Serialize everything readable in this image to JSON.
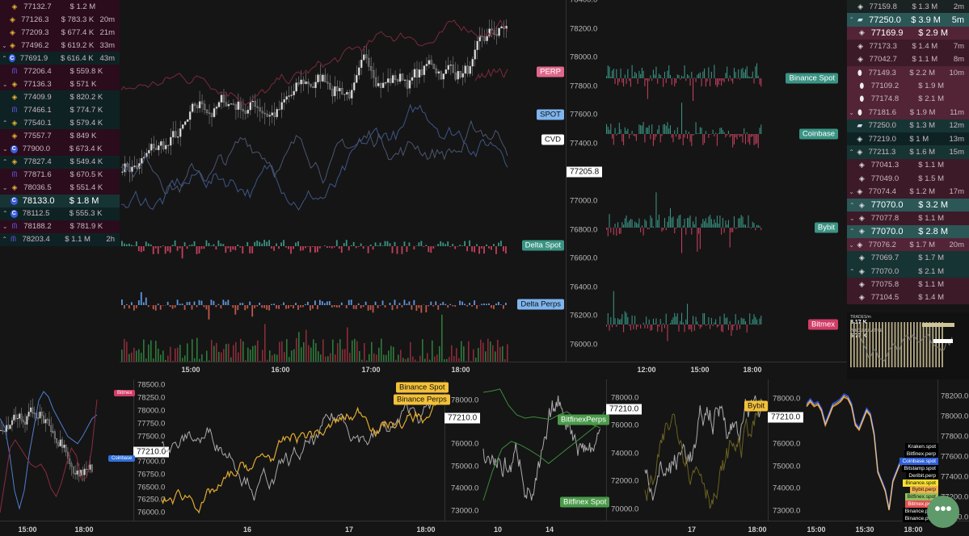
{
  "left_trades": [
    {
      "dir": "",
      "icon": "binance",
      "price": "77132.7",
      "amount": "$ 1.2 M",
      "time": "",
      "bg": "m1"
    },
    {
      "dir": "",
      "icon": "binance",
      "price": "77126.3",
      "amount": "$ 783.3 K",
      "time": "20m",
      "bg": "m1"
    },
    {
      "dir": "",
      "icon": "binance",
      "price": "77209.3",
      "amount": "$ 677.4 K",
      "time": "21m",
      "bg": "m1"
    },
    {
      "dir": "down",
      "icon": "binance",
      "price": "77496.2",
      "amount": "$ 619.2 K",
      "time": "33m",
      "bg": "m1"
    },
    {
      "dir": "up",
      "icon": "coinbase",
      "price": "77691.9",
      "amount": "$ 616.4 K",
      "time": "43m",
      "bg": "t1"
    },
    {
      "dir": "",
      "icon": "kraken",
      "price": "77206.4",
      "amount": "$ 559.8 K",
      "time": "",
      "bg": "m1"
    },
    {
      "dir": "down",
      "icon": "binance",
      "price": "77136.3",
      "amount": "$ 571 K",
      "time": "",
      "bg": "m1"
    },
    {
      "dir": "",
      "icon": "binance",
      "price": "77409.9",
      "amount": "$ 820.2 K",
      "time": "",
      "bg": "t1"
    },
    {
      "dir": "",
      "icon": "kraken",
      "price": "77466.1",
      "amount": "$ 774.7 K",
      "time": "",
      "bg": "t1"
    },
    {
      "dir": "up",
      "icon": "binance",
      "price": "77540.1",
      "amount": "$ 579.4 K",
      "time": "",
      "bg": "t1"
    },
    {
      "dir": "",
      "icon": "binance",
      "price": "77557.7",
      "amount": "$ 849 K",
      "time": "",
      "bg": "m1"
    },
    {
      "dir": "down",
      "icon": "coinbase",
      "price": "77900.0",
      "amount": "$ 673.4 K",
      "time": "",
      "bg": "m1"
    },
    {
      "dir": "up",
      "icon": "binance",
      "price": "77827.4",
      "amount": "$ 549.4 K",
      "time": "",
      "bg": "t1"
    },
    {
      "dir": "",
      "icon": "kraken",
      "price": "77871.6",
      "amount": "$ 670.5 K",
      "time": "",
      "bg": "m1"
    },
    {
      "dir": "down",
      "icon": "binance",
      "price": "78036.5",
      "amount": "$ 551.4 K",
      "time": "",
      "bg": "m1"
    },
    {
      "dir": "",
      "icon": "coinbase",
      "price": "78133.0",
      "amount": "$ 1.8 M",
      "time": "",
      "bg": "t2",
      "big": true
    },
    {
      "dir": "up",
      "icon": "coinbase",
      "price": "78112.5",
      "amount": "$ 555.3 K",
      "time": "",
      "bg": "t1"
    },
    {
      "dir": "down",
      "icon": "kraken",
      "price": "78188.2",
      "amount": "$ 781.9 K",
      "time": "",
      "bg": "m1"
    },
    {
      "dir": "up",
      "icon": "kraken",
      "price": "78203.4",
      "amount": "$ 1.1 M",
      "time": "2h",
      "bg": "t1"
    }
  ],
  "right_trades": [
    {
      "dir": "",
      "icon": "binance-white",
      "price": "77159.8",
      "amount": "$ 1.3 M",
      "time": "2m",
      "bg": "g"
    },
    {
      "dir": "up",
      "icon": "bitfinex",
      "price": "77250.0",
      "amount": "$ 3.9 M",
      "time": "5m",
      "bg": "t3",
      "big": true
    },
    {
      "dir": "",
      "icon": "binance-white",
      "price": "77169.9",
      "amount": "$ 2.9 M",
      "time": "",
      "bg": "m3",
      "big": true
    },
    {
      "dir": "",
      "icon": "binance-white",
      "price": "77173.3",
      "amount": "$ 1.4 M",
      "time": "7m",
      "bg": "m2"
    },
    {
      "dir": "",
      "icon": "binance-white",
      "price": "77042.7",
      "amount": "$ 1.1 M",
      "time": "8m",
      "bg": "m2"
    },
    {
      "dir": "",
      "icon": "bybit",
      "price": "77149.3",
      "amount": "$ 2.2 M",
      "time": "10m",
      "bg": "m3"
    },
    {
      "dir": "",
      "icon": "bybit",
      "price": "77109.2",
      "amount": "$ 1.9 M",
      "time": "",
      "bg": "m3"
    },
    {
      "dir": "",
      "icon": "bybit",
      "price": "77174.8",
      "amount": "$ 2.1 M",
      "time": "",
      "bg": "m3"
    },
    {
      "dir": "down",
      "icon": "bybit",
      "price": "77181.6",
      "amount": "$ 1.9 M",
      "time": "11m",
      "bg": "m3"
    },
    {
      "dir": "",
      "icon": "bitfinex",
      "price": "77250.0",
      "amount": "$ 1.3 M",
      "time": "12m",
      "bg": "t2"
    },
    {
      "dir": "",
      "icon": "binance-white",
      "price": "77219.0",
      "amount": "$ 1 M",
      "time": "13m",
      "bg": "t1"
    },
    {
      "dir": "up",
      "icon": "binance-white",
      "price": "77211.3",
      "amount": "$ 1.6 M",
      "time": "15m",
      "bg": "t2"
    },
    {
      "dir": "",
      "icon": "binance-white",
      "price": "77041.3",
      "amount": "$ 1.1 M",
      "time": "",
      "bg": "m2"
    },
    {
      "dir": "",
      "icon": "binance-white",
      "price": "77049.0",
      "amount": "$ 1.5 M",
      "time": "",
      "bg": "m2"
    },
    {
      "dir": "down",
      "icon": "binance-white",
      "price": "77074.4",
      "amount": "$ 1.2 M",
      "time": "17m",
      "bg": "m2"
    },
    {
      "dir": "up",
      "icon": "binance-white",
      "price": "77070.0",
      "amount": "$ 3.2 M",
      "time": "",
      "bg": "t3",
      "big": true
    },
    {
      "dir": "down",
      "icon": "binance-white",
      "price": "77077.8",
      "amount": "$ 1.1 M",
      "time": "",
      "bg": "m2"
    },
    {
      "dir": "up",
      "icon": "binance-white",
      "price": "77070.0",
      "amount": "$ 2.8 M",
      "time": "",
      "bg": "t3",
      "big": true
    },
    {
      "dir": "down",
      "icon": "binance-white",
      "price": "77076.2",
      "amount": "$ 1.7 M",
      "time": "20m",
      "bg": "m3"
    },
    {
      "dir": "",
      "icon": "binance-white",
      "price": "77069.7",
      "amount": "$ 1.7 M",
      "time": "",
      "bg": "t2"
    },
    {
      "dir": "up",
      "icon": "binance-white",
      "price": "77070.0",
      "amount": "$ 2.1 M",
      "time": "",
      "bg": "t2"
    },
    {
      "dir": "",
      "icon": "binance-white",
      "price": "77075.8",
      "amount": "$ 1.1 M",
      "time": "",
      "bg": "m2"
    },
    {
      "dir": "",
      "icon": "binance-white",
      "price": "77104.5",
      "amount": "$ 1.4 M",
      "time": "",
      "bg": "m2"
    }
  ],
  "main_chart": {
    "axis": [
      "78400.0",
      "78200.0",
      "78000.0",
      "77800.0",
      "77600.0",
      "77400.0",
      "77000.0",
      "76800.0",
      "76600.0",
      "76400.0",
      "76200.0",
      "76000.0"
    ],
    "last_price": "77205.8",
    "times": [
      "15:00",
      "16:00",
      "17:00",
      "18:00"
    ],
    "labels": {
      "perp": "PERP",
      "spot": "SPOT",
      "cvd": "CVD",
      "delta_spot": "Delta Spot",
      "delta_perps": "Delta Perps"
    }
  },
  "exchange_panel": {
    "labels": [
      "Binance Spot",
      "Coinbase",
      "Bybit",
      "Bitmex"
    ],
    "times": [
      "12:00",
      "15:00",
      "18:00"
    ]
  },
  "widget": {
    "title": "TRADES/m",
    "value": "8.17 K",
    "sub": "1m CUMULATIVE",
    "sub_value": "5.77 K"
  },
  "bottom": {
    "p1": {
      "axis": [
        "78500.0",
        "78250.0",
        "78000.0",
        "77750.0",
        "77500.0",
        "77000.0",
        "76750.0",
        "76500.0",
        "76250.0",
        "76000.0"
      ],
      "price": "77210.0",
      "labels": [
        "Bitmex",
        "Coinbase"
      ],
      "times": [
        "15:00",
        "18:00"
      ]
    },
    "p2": {
      "axis": [
        "78000.0",
        "76000.0",
        "75000.0",
        "74000.0",
        "73000.0"
      ],
      "price": "77210.0",
      "labels": [
        "Binance Spot",
        "Binance Perps"
      ],
      "times": [
        "16",
        "17",
        "18:00"
      ]
    },
    "p3": {
      "axis": [
        "78000.0",
        "76000.0",
        "74000.0",
        "72000.0",
        "70000.0"
      ],
      "price": "77210.0",
      "labels": [
        "BitfinexPerps",
        "Bitfinex Spot"
      ],
      "times": [
        "10",
        "14"
      ]
    },
    "p4": {
      "axis": [
        "78000.0",
        "76000.0",
        "75000.0",
        "74000.0",
        "73000.0"
      ],
      "price": "77210.0",
      "labels": [
        "Bybit"
      ],
      "times": [
        "17",
        "18:00"
      ]
    },
    "p5": {
      "axis": [
        "78200.0",
        "78000.0",
        "77800.0",
        "77600.0",
        "77400.0",
        "77200.0",
        "77000.0"
      ],
      "times": [
        "15:00",
        "15:30",
        "18:00"
      ],
      "legend": [
        "Kraken.spot",
        "Bitfinex.perp",
        "Coinbase.spot",
        "Bitstamp.spot",
        "Deribit.perp",
        "Binance.spot",
        "Bybit.perp",
        "Bitfinex.spot",
        "Bitmex.perp",
        "Binance.perp",
        "Binance.perp"
      ]
    }
  },
  "colors": {
    "perp": "#e0688c",
    "spot": "#7fb4ee",
    "delta_spot": "#3a9484",
    "bitmex": "#d23c66",
    "coinbase": "#2f6fd8",
    "yellow": "#f3c13a",
    "green": "#4a9a4a",
    "fab": "#5f9a6a"
  }
}
